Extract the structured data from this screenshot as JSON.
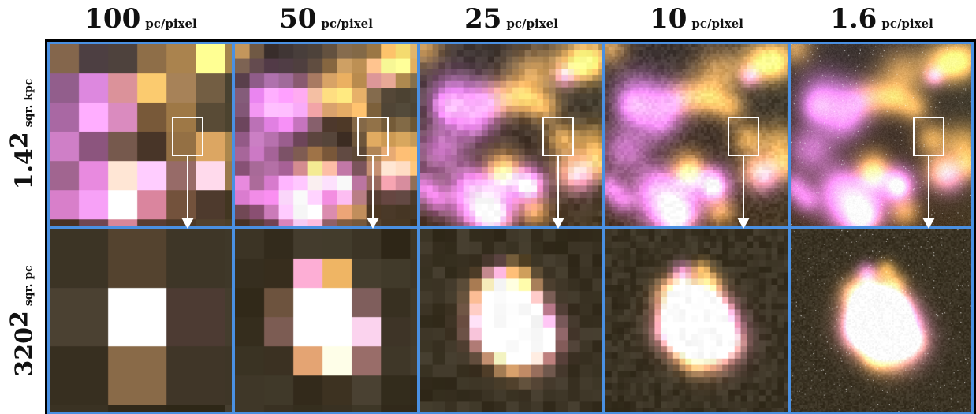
{
  "columns": [
    {
      "value": "100",
      "unit": "pc/pixel",
      "block": 38
    },
    {
      "value": "50",
      "unit": "pc/pixel",
      "block": 19
    },
    {
      "value": "25",
      "unit": "pc/pixel",
      "block": 8
    },
    {
      "value": "10",
      "unit": "pc/pixel",
      "block": 4
    },
    {
      "value": "1.6",
      "unit": "pc/pixel",
      "block": 1
    }
  ],
  "rows": [
    {
      "value": "1.4",
      "exponent": "2",
      "unit": "sqr. kpc"
    },
    {
      "value": "320",
      "exponent": "2",
      "unit": "sqr. pc"
    }
  ],
  "colors": {
    "frame_border": "#4a90e2",
    "nebula_pink": "#c98ad8",
    "nebula_gold": "#d9a46a",
    "background_dust": "#3a3322"
  }
}
